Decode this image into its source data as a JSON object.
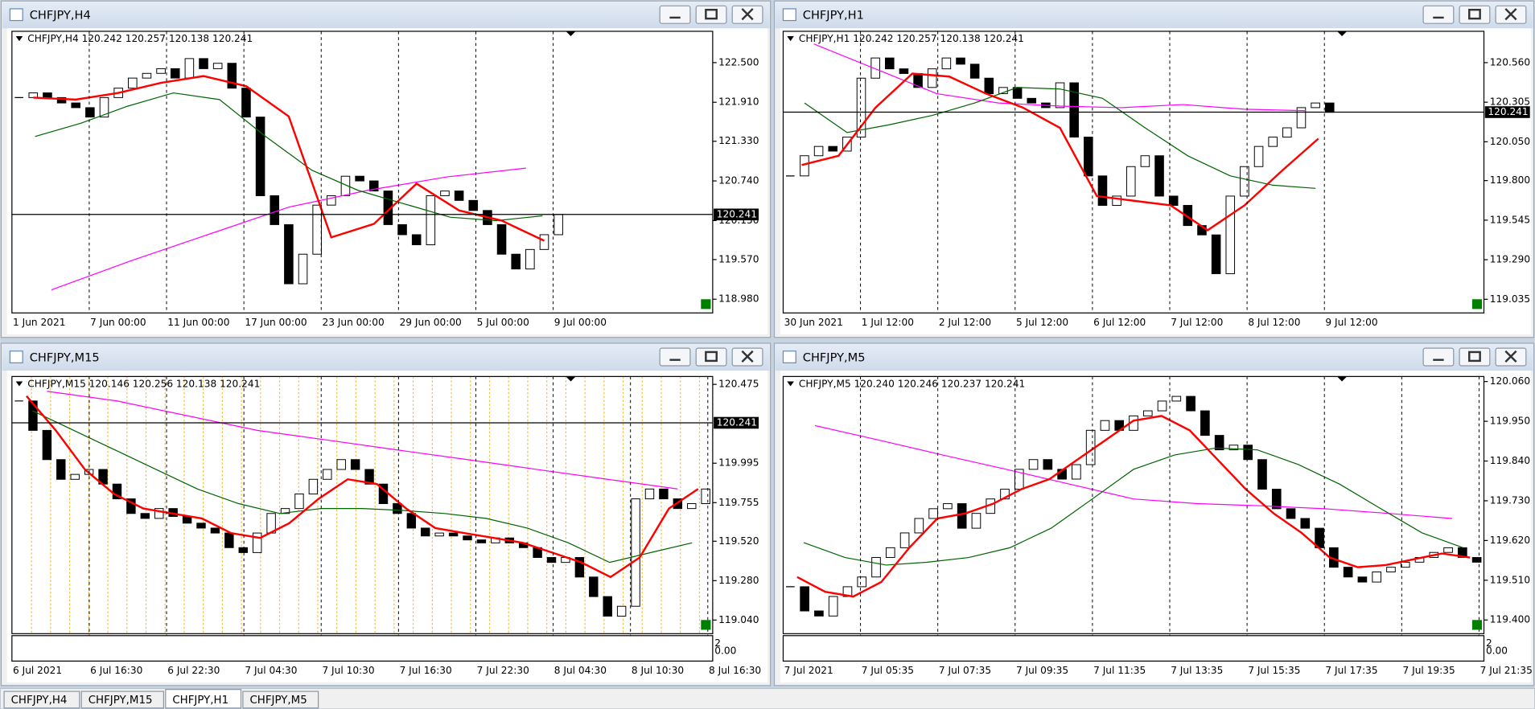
{
  "windows": [
    {
      "title": "CHFJPY,H4",
      "active": false,
      "chart_data": {
        "type": "candlestick",
        "header": "CHFJPY,H4  120.242 120.257 120.138 120.241",
        "x_labels": [
          "1 Jun 2021",
          "7 Jun 00:00",
          "11 Jun 00:00",
          "17 Jun 00:00",
          "23 Jun 00:00",
          "29 Jun 00:00",
          "5 Jul 00:00",
          "9 Jul 00:00"
        ],
        "ylim": [
          118.776,
          122.966
        ],
        "yticks": [
          {
            "value": 122.5,
            "label": "122.500"
          },
          {
            "value": 121.91,
            "label": "121.910"
          },
          {
            "value": 121.33,
            "label": "121.330"
          },
          {
            "value": 120.74,
            "label": "120.740"
          },
          {
            "value": 120.15,
            "label": "120.150"
          },
          {
            "value": 119.57,
            "label": "119.570"
          },
          {
            "value": 118.98,
            "label": "118.980"
          }
        ],
        "last_price": 120.241,
        "close": [
          121.98,
          122.05,
          121.98,
          121.9,
          121.83,
          121.69,
          121.98,
          122.12,
          122.27,
          122.34,
          122.41,
          122.27,
          122.56,
          122.41,
          122.49,
          122.12,
          121.69,
          120.52,
          120.09,
          119.21,
          119.65,
          120.38,
          120.52,
          120.81,
          120.74,
          120.59,
          120.09,
          119.94,
          119.79,
          120.52,
          120.59,
          120.45,
          120.3,
          120.09,
          119.65,
          119.43,
          119.72,
          119.94,
          120.24
        ],
        "series": [
          {
            "color": "#ff00ff",
            "values": [
              119.12,
              119.55,
              119.95,
              120.35,
              120.6,
              120.8,
              120.93
            ]
          },
          {
            "color": "#006400",
            "values": [
              121.4,
              121.6,
              121.85,
              122.05,
              121.95,
              121.4,
              120.9,
              120.6,
              120.4,
              120.2,
              120.15,
              120.22
            ]
          },
          {
            "color": "#ff0000",
            "values": [
              121.98,
              121.95,
              122.05,
              122.2,
              122.3,
              122.15,
              121.7,
              119.9,
              120.1,
              120.7,
              120.3,
              120.15,
              119.85
            ]
          }
        ]
      }
    },
    {
      "title": "CHFJPY,H1",
      "active": true,
      "chart_data": {
        "type": "candlestick",
        "header": "CHFJPY,H1  120.242 120.257 120.138 120.241",
        "x_labels": [
          "30 Jun 2021",
          "1 Jul 12:00",
          "2 Jul 12:00",
          "5 Jul 12:00",
          "6 Jul 12:00",
          "7 Jul 12:00",
          "8 Jul 12:00",
          "9 Jul 12:00"
        ],
        "ylim": [
          118.947,
          120.762
        ],
        "yticks": [
          {
            "value": 120.56,
            "label": "120.560"
          },
          120.305,
          {
            "value": 120.05,
            "label": "120.050"
          },
          {
            "value": 119.8,
            "label": "119.800"
          },
          119.545,
          {
            "value": 119.29,
            "label": "119.290"
          },
          119.035
        ],
        "last_price": 120.241,
        "close": [
          119.83,
          119.96,
          120.02,
          119.99,
          120.08,
          120.46,
          120.59,
          120.52,
          120.49,
          120.4,
          120.52,
          120.59,
          120.55,
          120.46,
          120.36,
          120.4,
          120.33,
          120.3,
          120.27,
          120.43,
          120.08,
          119.83,
          119.64,
          119.7,
          119.89,
          119.96,
          119.7,
          119.64,
          119.51,
          119.45,
          119.2,
          119.7,
          119.89,
          120.02,
          120.08,
          120.14,
          120.27,
          120.3,
          120.24
        ],
        "series": [
          {
            "color": "#ff00ff",
            "values": [
              120.68,
              120.52,
              120.36,
              120.3,
              120.28,
              120.27,
              120.29,
              120.26,
              120.25
            ]
          },
          {
            "color": "#006400",
            "values": [
              120.3,
              120.11,
              120.16,
              120.22,
              120.3,
              120.4,
              120.39,
              120.33,
              120.14,
              119.96,
              119.83,
              119.77,
              119.75
            ]
          },
          {
            "color": "#ff0000",
            "values": [
              119.9,
              119.96,
              120.27,
              120.49,
              120.47,
              120.36,
              120.27,
              120.14,
              119.7,
              119.67,
              119.64,
              119.48,
              119.64,
              119.86,
              120.07
            ]
          }
        ]
      }
    },
    {
      "title": "CHFJPY,M15",
      "active": false,
      "chart_data": {
        "type": "candlestick",
        "header": "CHFJPY,M15  120.146 120.256 120.138 120.241",
        "x_labels": [
          "6 Jul 2021",
          "6 Jul 16:30",
          "6 Jul 22:30",
          "7 Jul 04:30",
          "7 Jul 10:30",
          "7 Jul 16:30",
          "7 Jul 22:30",
          "8 Jul 04:30",
          "8 Jul 10:30",
          "8 Jul 16:30"
        ],
        "ylim": [
          118.957,
          120.523
        ],
        "yticks": [
          120.475,
          119.995,
          119.755,
          {
            "value": 119.52,
            "label": "119.520"
          },
          {
            "value": 119.28,
            "label": "119.280"
          },
          {
            "value": 119.04,
            "label": "119.040"
          }
        ],
        "last_price": 120.241,
        "indicator_labels": [
          "2",
          "0.00"
        ],
        "close": [
          120.374,
          120.195,
          120.017,
          119.897,
          119.927,
          119.957,
          119.868,
          119.778,
          119.689,
          119.659,
          119.719,
          119.671,
          119.63,
          119.6,
          119.57,
          119.481,
          119.451,
          119.57,
          119.689,
          119.719,
          119.808,
          119.897,
          119.957,
          120.017,
          119.957,
          119.868,
          119.749,
          119.689,
          119.6,
          119.552,
          119.57,
          119.552,
          119.528,
          119.51,
          119.54,
          119.51,
          119.481,
          119.421,
          119.391,
          119.421,
          119.302,
          119.183,
          119.064,
          119.124,
          119.778,
          119.838,
          119.778,
          119.719,
          119.749,
          119.838
        ],
        "series": [
          {
            "color": "#ff00ff",
            "values": [
              120.433,
              120.374,
              120.284,
              120.195,
              120.136,
              120.076,
              120.017,
              119.957,
              119.897,
              119.838
            ]
          },
          {
            "color": "#006400",
            "values": [
              120.314,
              120.195,
              120.076,
              119.957,
              119.838,
              119.749,
              119.689,
              119.719,
              119.719,
              119.707,
              119.689,
              119.659,
              119.6,
              119.51,
              119.391,
              119.451,
              119.51
            ]
          },
          {
            "color": "#ff0000",
            "values": [
              120.404,
              120.195,
              119.957,
              119.808,
              119.719,
              119.689,
              119.659,
              119.57,
              119.54,
              119.63,
              119.778,
              119.897,
              119.868,
              119.719,
              119.6,
              119.57,
              119.54,
              119.51,
              119.451,
              119.391,
              119.302,
              119.421,
              119.719,
              119.838
            ]
          }
        ]
      }
    },
    {
      "title": "CHFJPY,M5",
      "active": false,
      "chart_data": {
        "type": "candlestick",
        "header": "CHFJPY,M5  120.240 120.246 120.237 120.241",
        "x_labels": [
          "7 Jul 2021",
          "7 Jul 05:35",
          "7 Jul 07:35",
          "7 Jul 09:35",
          "7 Jul 11:35",
          "7 Jul 13:35",
          "7 Jul 15:35",
          "7 Jul 17:35",
          "7 Jul 19:35",
          "7 Jul 21:35"
        ],
        "ylim": [
          119.362,
          120.074
        ],
        "yticks": [
          {
            "value": 120.06,
            "label": "120.060"
          },
          {
            "value": 119.95,
            "label": "119.950"
          },
          {
            "value": 119.84,
            "label": "119.840"
          },
          {
            "value": 119.73,
            "label": "119.730"
          },
          {
            "value": 119.62,
            "label": "119.620"
          },
          {
            "value": 119.51,
            "label": "119.510"
          },
          {
            "value": 119.4,
            "label": "119.400"
          }
        ],
        "indicator_labels": [
          "2",
          "0.00"
        ],
        "close": [
          119.492,
          119.425,
          119.411,
          119.465,
          119.492,
          119.519,
          119.573,
          119.6,
          119.641,
          119.681,
          119.708,
          119.722,
          119.654,
          119.695,
          119.735,
          119.762,
          119.817,
          119.844,
          119.817,
          119.79,
          119.83,
          119.925,
          119.952,
          119.925,
          119.965,
          119.979,
          120.006,
          120.019,
          119.979,
          119.911,
          119.871,
          119.884,
          119.844,
          119.762,
          119.708,
          119.681,
          119.654,
          119.6,
          119.546,
          119.519,
          119.505,
          119.533,
          119.546,
          119.56,
          119.573,
          119.587,
          119.6,
          119.573,
          119.56
        ],
        "series": [
          {
            "color": "#ff00ff",
            "values": [
              119.938,
              119.898,
              119.857,
              119.817,
              119.776,
              119.735,
              119.722,
              119.716,
              119.708,
              119.695,
              119.681
            ]
          },
          {
            "color": "#006400",
            "values": [
              119.614,
              119.573,
              119.552,
              119.56,
              119.573,
              119.6,
              119.654,
              119.735,
              119.817,
              119.857,
              119.876,
              119.871,
              119.83,
              119.776,
              119.708,
              119.641,
              119.6
            ]
          },
          {
            "color": "#ff0000",
            "values": [
              119.519,
              119.478,
              119.465,
              119.505,
              119.6,
              119.681,
              119.695,
              119.722,
              119.762,
              119.79,
              119.844,
              119.898,
              119.952,
              119.965,
              119.925,
              119.844,
              119.762,
              119.695,
              119.641,
              119.573,
              119.546,
              119.552,
              119.568,
              119.584,
              119.573
            ]
          }
        ]
      }
    }
  ],
  "tabs": [
    {
      "label": "CHFJPY,H4"
    },
    {
      "label": "CHFJPY,M15"
    },
    {
      "label": "CHFJPY,H1",
      "active": true
    },
    {
      "label": "CHFJPY,M5"
    }
  ]
}
